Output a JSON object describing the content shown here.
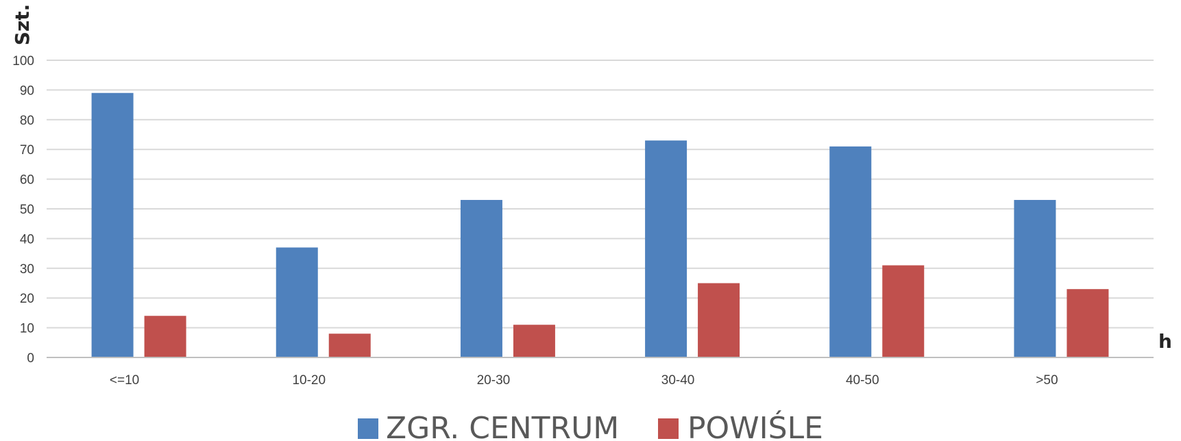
{
  "chart_data": {
    "type": "bar",
    "title": "",
    "xlabel": "h",
    "ylabel": "Szt.",
    "categories": [
      "<=10",
      "10-20",
      "20-30",
      "30-40",
      "40-50",
      ">50"
    ],
    "series": [
      {
        "name": "ZGR. CENTRUM",
        "color": "#4f81bd",
        "values": [
          89,
          37,
          53,
          73,
          71,
          53
        ]
      },
      {
        "name": "POWIŚLE",
        "color": "#c0504d",
        "values": [
          14,
          8,
          11,
          25,
          31,
          23
        ]
      }
    ],
    "ylim": [
      0,
      100
    ],
    "yticks": [
      0,
      10,
      20,
      30,
      40,
      50,
      60,
      70,
      80,
      90,
      100
    ],
    "grid": true,
    "legend_position": "bottom"
  }
}
